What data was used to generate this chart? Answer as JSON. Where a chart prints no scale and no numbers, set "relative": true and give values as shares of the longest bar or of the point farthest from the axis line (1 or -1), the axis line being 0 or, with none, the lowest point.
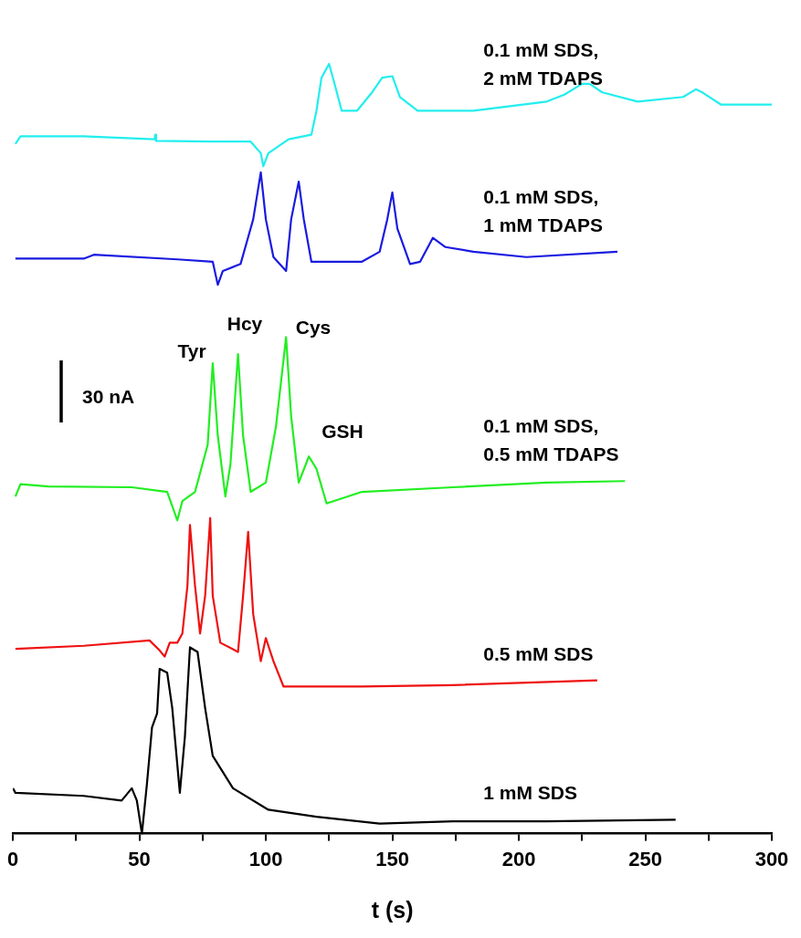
{
  "chart_data": {
    "type": "line",
    "relative": true,
    "xlabel": "t (s)",
    "xlim": [
      0,
      300
    ],
    "xticks": [
      0,
      {
        "value": 25,
        "label": null
      },
      50,
      {
        "value": 75,
        "label": null
      },
      100,
      {
        "value": 125,
        "label": null
      },
      150,
      {
        "value": 175,
        "label": null
      },
      200,
      {
        "value": 225,
        "label": null
      },
      250,
      {
        "value": 275,
        "label": null
      },
      300
    ],
    "annotations": [
      "30 nA",
      "Tyr",
      "Hcy",
      "Cys",
      "GSH"
    ],
    "series": [
      {
        "name": "0.1 mM SDS, 2 mM TDAPS",
        "color": "#22eeee",
        "x": [
          1,
          3,
          28,
          56,
          56.3,
          56.6,
          79,
          94,
          98,
          99,
          101,
          109,
          118,
          120,
          122,
          125,
          127,
          130,
          136,
          142,
          146,
          150,
          153,
          160,
          182,
          211,
          218,
          225,
          228,
          233,
          247,
          265,
          270,
          273,
          280,
          300
        ],
        "values": [
          0.896,
          0.906,
          0.906,
          0.902,
          0.908,
          0.9,
          0.899,
          0.899,
          0.884,
          0.867,
          0.884,
          0.902,
          0.908,
          0.939,
          0.982,
          1,
          0.976,
          0.939,
          0.939,
          0.963,
          0.982,
          0.984,
          0.957,
          0.939,
          0.939,
          0.951,
          0.96,
          0.974,
          0.974,
          0.963,
          0.951,
          0.957,
          0.967,
          0.962,
          0.947,
          0.947
        ]
      },
      {
        "name": "0.1 mM SDS, 1 mM TDAPS",
        "color": "#1a1ae0",
        "x": [
          1,
          28,
          32,
          65,
          79,
          81,
          83,
          90,
          95,
          98,
          100,
          103,
          108,
          110,
          113,
          115,
          118,
          138,
          145,
          148,
          150,
          152,
          157,
          161,
          166,
          171,
          182,
          203,
          239
        ],
        "values": [
          0.747,
          0.747,
          0.752,
          0.746,
          0.743,
          0.713,
          0.731,
          0.74,
          0.798,
          0.859,
          0.798,
          0.749,
          0.731,
          0.798,
          0.847,
          0.798,
          0.743,
          0.743,
          0.756,
          0.798,
          0.833,
          0.786,
          0.74,
          0.743,
          0.774,
          0.762,
          0.756,
          0.749,
          0.756
        ]
      },
      {
        "name": "0.1 mM SDS, 0.5 mM TDAPS",
        "color": "#22ee22",
        "x": [
          1,
          3,
          14,
          47,
          61,
          65,
          67,
          72,
          77,
          79,
          81,
          84,
          86,
          89,
          91,
          94,
          100,
          104,
          108,
          110,
          113,
          117,
          120,
          124,
          138,
          174,
          211,
          242
        ],
        "values": [
          0.438,
          0.454,
          0.451,
          0.45,
          0.444,
          0.407,
          0.432,
          0.444,
          0.505,
          0.611,
          0.517,
          0.438,
          0.48,
          0.623,
          0.517,
          0.444,
          0.456,
          0.529,
          0.645,
          0.542,
          0.456,
          0.49,
          0.474,
          0.429,
          0.444,
          0.45,
          0.456,
          0.458
        ]
      },
      {
        "name": "0.5 mM SDS",
        "color": "#ee1111",
        "x": [
          1,
          28,
          54,
          58,
          60,
          62,
          65,
          67,
          69,
          70,
          72,
          74,
          76,
          78,
          79,
          82,
          89,
          91,
          93,
          95,
          98,
          100,
          103,
          107,
          138,
          174,
          231
        ],
        "values": [
          0.24,
          0.244,
          0.251,
          0.238,
          0.23,
          0.248,
          0.248,
          0.26,
          0.322,
          0.401,
          0.322,
          0.26,
          0.309,
          0.41,
          0.309,
          0.248,
          0.236,
          0.309,
          0.392,
          0.285,
          0.224,
          0.254,
          0.224,
          0.191,
          0.191,
          0.193,
          0.199
        ]
      },
      {
        "name": "1 mM SDS",
        "color": "#000000",
        "x": [
          0,
          1,
          28,
          43,
          47,
          49,
          51,
          53,
          55,
          57,
          58,
          61,
          63,
          66,
          68,
          70,
          73,
          76,
          79,
          87,
          101,
          120,
          145,
          174,
          211,
          262
        ],
        "values": [
          0.059,
          0.053,
          0.049,
          0.043,
          0.059,
          0.043,
          0,
          0.065,
          0.138,
          0.156,
          0.214,
          0.209,
          0.163,
          0.053,
          0.126,
          0.242,
          0.236,
          0.163,
          0.101,
          0.059,
          0.031,
          0.022,
          0.013,
          0.016,
          0.016,
          0.018
        ]
      }
    ]
  }
}
